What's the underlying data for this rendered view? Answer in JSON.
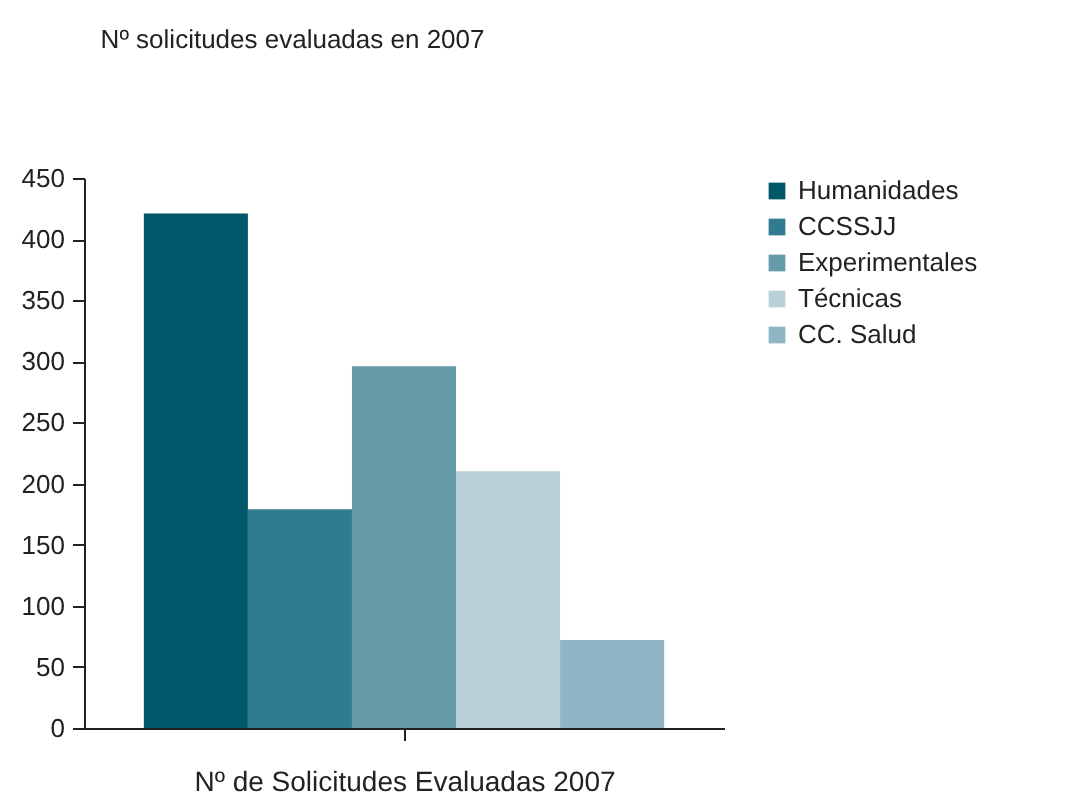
{
  "chart_data": {
    "type": "bar",
    "title": "Nº solicitudes evaluadas en 2007",
    "xlabel": "Nº de Solicitudes Evaluadas 2007",
    "categories": [
      null
    ],
    "series": [
      {
        "name": "Humanidades",
        "color": "#02566a",
        "values": [
          421
        ]
      },
      {
        "name": "CCSSJJ",
        "color": "#307b8f",
        "values": [
          179
        ]
      },
      {
        "name": "Experimentales",
        "color": "#669baa",
        "values": [
          296
        ]
      },
      {
        "name": "Técnicas",
        "color": "#b9d0d9",
        "values": [
          210
        ]
      },
      {
        "name": "CC. Salud",
        "color": "#8fb4c3",
        "values": [
          72
        ]
      }
    ],
    "ylim": [
      0,
      450
    ],
    "yticks": [
      0,
      50,
      100,
      150,
      200,
      250,
      300,
      350,
      400,
      450
    ],
    "grid": false,
    "legend": "right"
  }
}
